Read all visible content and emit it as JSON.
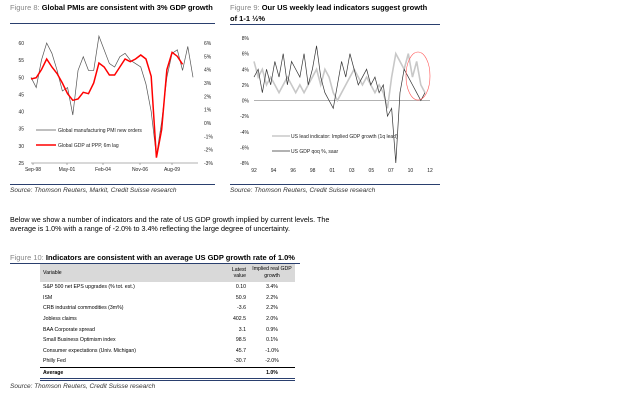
{
  "fig8": {
    "num": "Figure 8:",
    "title": "Global PMIs are consistent with 3% GDP growth",
    "source": "Source: Thomson Reuters, Markit, Credit Suisse research"
  },
  "fig9": {
    "num": "Figure 9:",
    "title_line1": "Our US weekly lead indicators suggest growth",
    "title_line2": "of 1-1 ½%",
    "source": "Source: Thomson Reuters, Credit Suisse research"
  },
  "paragraph": "Below we show a number of indicators and the rate of US GDP growth implied by current levels. The average is 1.0% with a range of -2.0% to 3.4% reflecting the large degree of uncertainty.",
  "fig10": {
    "num": "Figure 10:",
    "title": "Indicators are consistent with an average US GDP growth rate of 1.0%",
    "source": "Source: Thomson Reuters, Credit Suisse research",
    "headers": [
      "Variable",
      "Latest value",
      "Implied real GDP growth"
    ],
    "rows": [
      [
        "S&P 500 net EPS upgrades (% tot. est.)",
        "0.10",
        "3.4%"
      ],
      [
        "ISM",
        "50.9",
        "2.2%"
      ],
      [
        "CRB industrial commodities (3m%)",
        "-3.6",
        "2.2%"
      ],
      [
        "Jobless claims",
        "402.5",
        "2.0%"
      ],
      [
        "BAA Corporate spread",
        "3.1",
        "0.9%"
      ],
      [
        "Small Business Optimism index",
        "98.5",
        "0.1%"
      ],
      [
        "Consumer expectations (Univ. Michigan)",
        "45.7",
        "-1.0%"
      ],
      [
        "Philly Fed",
        "-30.7",
        "-2.0%"
      ]
    ],
    "average": [
      "Average",
      "",
      "1.0%"
    ]
  },
  "chart_data": [
    {
      "type": "line",
      "title": "Global PMIs are consistent with 3% GDP growth",
      "x_ticks": [
        "Sep-98",
        "May-01",
        "Feb-04",
        "Nov-06",
        "Aug-09"
      ],
      "y_left_ticks": [
        "60",
        "55",
        "50",
        "45",
        "40",
        "35",
        "30",
        "25"
      ],
      "ylim_left": [
        25,
        60
      ],
      "y_right_ticks": [
        "6%",
        "5%",
        "4%",
        "3%",
        "2%",
        "1%",
        "0%",
        "-1%",
        "-2%",
        "-3%"
      ],
      "ylim_right": [
        -3,
        6
      ],
      "series": [
        {
          "name": "Global manufacturing PMI new orders",
          "axis": "left",
          "color": "#555555",
          "values": [
            50,
            47,
            55,
            60,
            57,
            52,
            46,
            47,
            39,
            52,
            56,
            52,
            52,
            62,
            58,
            54,
            53,
            56,
            57,
            55,
            54,
            53,
            48,
            40,
            27,
            37,
            50,
            57,
            58,
            52,
            59,
            50
          ]
        },
        {
          "name": "Global GDP at PPP, 6m lag",
          "axis": "right",
          "color": "#ff0000",
          "values": [
            3.3,
            3.4,
            4.0,
            4.8,
            4.2,
            3.7,
            3.0,
            2.2,
            1.7,
            1.8,
            2.3,
            2.2,
            3.0,
            4.5,
            4.2,
            3.6,
            3.6,
            4.2,
            4.8,
            4.6,
            4.8,
            5.1,
            4.8,
            3.5,
            -2.6,
            -0.5,
            4.0,
            5.3,
            5.0,
            4.4
          ]
        }
      ]
    },
    {
      "type": "line",
      "title": "Our US weekly lead indicators suggest growth of 1-1 ½%",
      "x_ticks": [
        "92",
        "94",
        "96",
        "98",
        "01",
        "03",
        "05",
        "07",
        "10",
        "12"
      ],
      "y_ticks": [
        "8%",
        "6%",
        "4%",
        "2%",
        "0%",
        "-2%",
        "-4%",
        "-6%",
        "-8%"
      ],
      "ylim": [
        -8,
        8
      ],
      "series": [
        {
          "name": "US lead indicator: Implied GDP growth (1q lead)",
          "color": "#c8c8c8",
          "values": [
            5,
            3,
            4,
            2,
            3,
            2,
            1,
            2,
            3,
            2,
            1,
            2,
            1,
            2,
            3,
            4,
            2,
            4,
            3,
            1,
            0,
            1,
            2,
            3,
            4,
            3,
            2,
            3,
            2,
            1,
            2,
            1,
            -1,
            3,
            6,
            5,
            4,
            6,
            3,
            5,
            2,
            1
          ]
        },
        {
          "name": "US GDP qoq %, saar",
          "color": "#333333",
          "values": [
            3,
            4,
            1,
            4,
            2,
            5,
            3,
            6,
            2,
            5,
            4,
            3,
            6,
            2,
            4,
            7,
            3,
            1,
            0,
            -1,
            2,
            5,
            3,
            6,
            4,
            2,
            3,
            4,
            2,
            3,
            1,
            2,
            -2,
            -1,
            -8,
            1,
            4,
            3,
            2,
            1,
            0,
            1
          ]
        }
      ]
    }
  ]
}
